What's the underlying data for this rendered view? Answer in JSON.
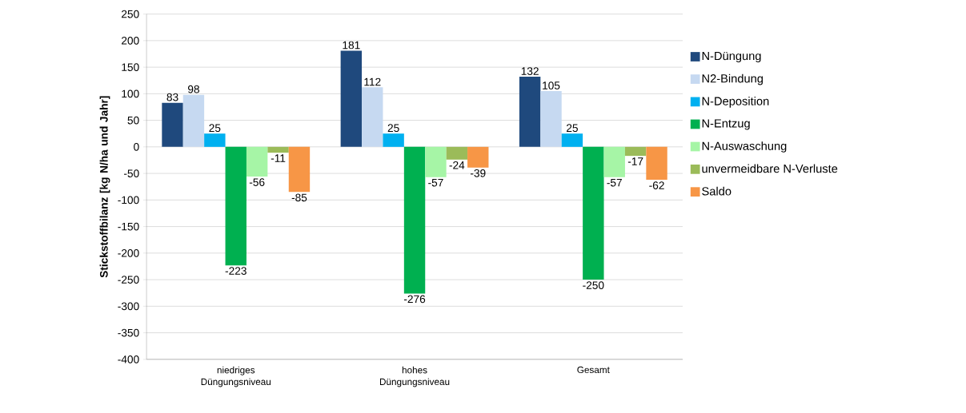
{
  "chart_data": {
    "type": "bar",
    "ylabel": "Stickstoffbilanz [kg N/ha und Jahr]",
    "categories": [
      "niedriges Düngungsniveau",
      "hohes Düngungsniveau",
      "Gesamt"
    ],
    "series": [
      {
        "name": "N-Düngung",
        "color": "#1f497d",
        "values": [
          83,
          181,
          132
        ]
      },
      {
        "name": "N2-Bindung",
        "color": "#c6d9f1",
        "values": [
          98,
          112,
          105
        ]
      },
      {
        "name": "N-Deposition",
        "color": "#00b0f0",
        "values": [
          25,
          25,
          25
        ]
      },
      {
        "name": "N-Entzug",
        "color": "#00b050",
        "values": [
          -223,
          -276,
          -250
        ]
      },
      {
        "name": "N-Auswaschung",
        "color": "#a6f5a6",
        "values": [
          -56,
          -57,
          -57
        ]
      },
      {
        "name": "unvermeidbare N-Verluste",
        "color": "#9bbb59",
        "values": [
          -11,
          -24,
          -17
        ]
      },
      {
        "name": "Saldo",
        "color": "#f79646",
        "values": [
          -85,
          -39,
          -62
        ]
      }
    ],
    "ylim": [
      -400,
      250
    ],
    "yticks": [
      -400,
      -350,
      -300,
      -250,
      -200,
      -150,
      -100,
      -50,
      0,
      50,
      100,
      150,
      200,
      250
    ],
    "grid": "y",
    "legend": "right",
    "data_labels": true
  }
}
